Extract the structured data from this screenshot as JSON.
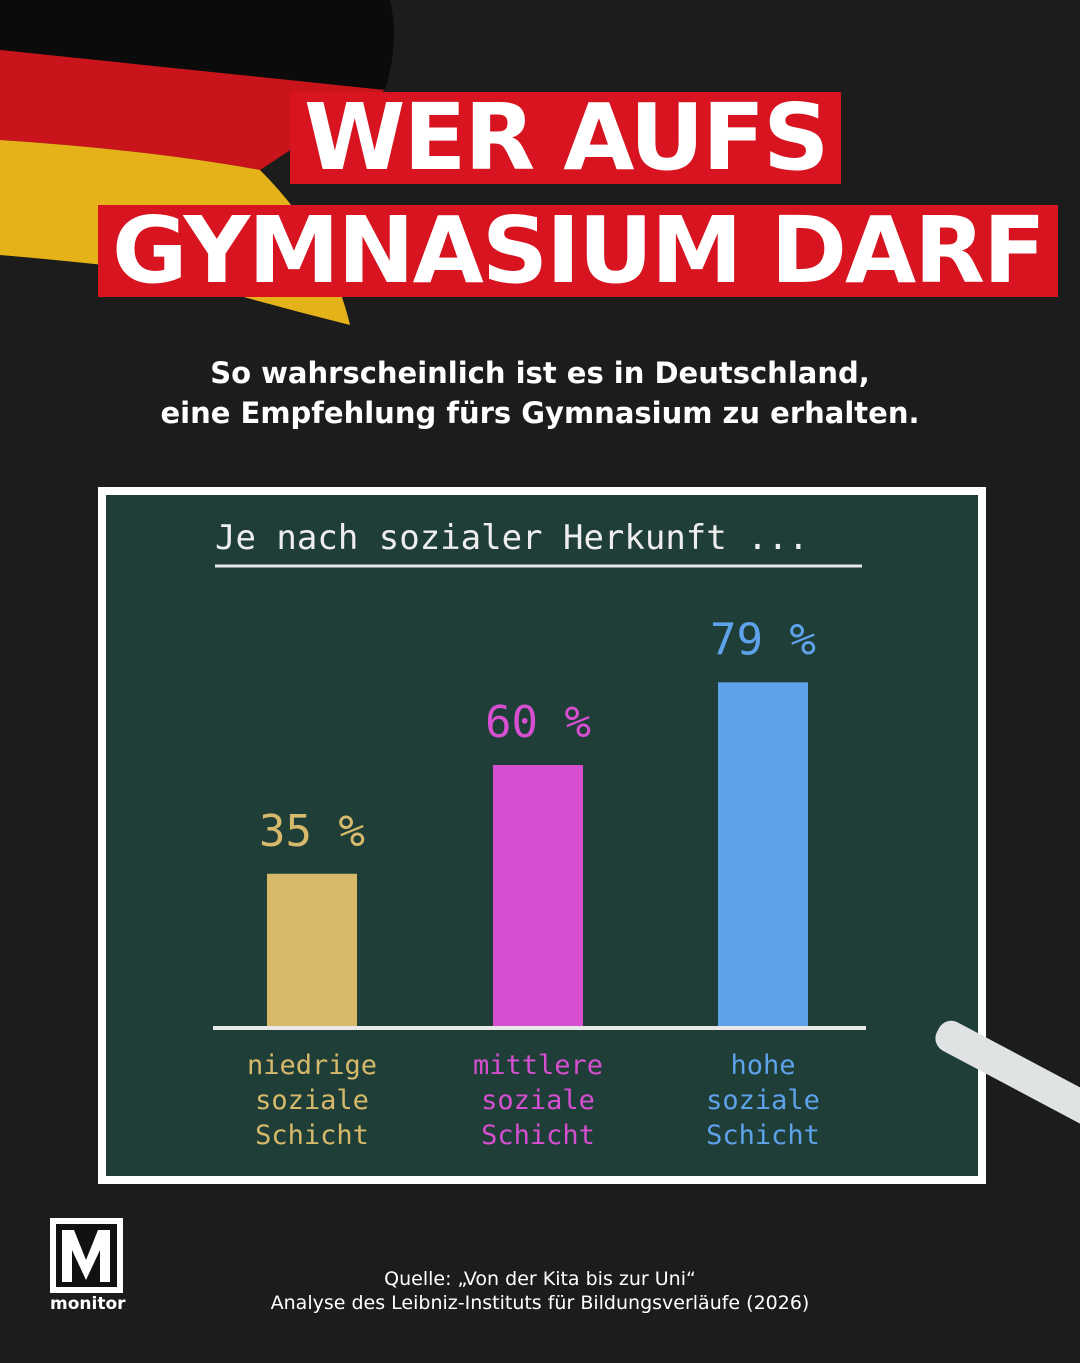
{
  "header": {
    "title_lines": [
      "WER AUFS",
      "GYMNASIUM DARF"
    ],
    "subtitle_lines": [
      "So wahrscheinlich ist es in Deutschland,",
      "eine Empfehlung fürs Gymnasium zu erhalten."
    ]
  },
  "chart_data": {
    "type": "bar",
    "title": "Je nach sozialer Herkunft ...",
    "categories": [
      "niedrige soziale Schicht",
      "mittlere soziale Schicht",
      "hohe soziale Schicht"
    ],
    "values": [
      35,
      60,
      79
    ],
    "value_labels": [
      "35 %",
      "60 %",
      "79 %"
    ],
    "colors": [
      "#d6b96a",
      "#d64fd0",
      "#5ea2ea"
    ]
  },
  "footer": {
    "logo": "monitor",
    "source_lines": [
      "Quelle: „Von der Kita bis zur Uni“",
      "Analyse des Leibniz-Instituts für Bildungsverläufe (2026)"
    ]
  }
}
